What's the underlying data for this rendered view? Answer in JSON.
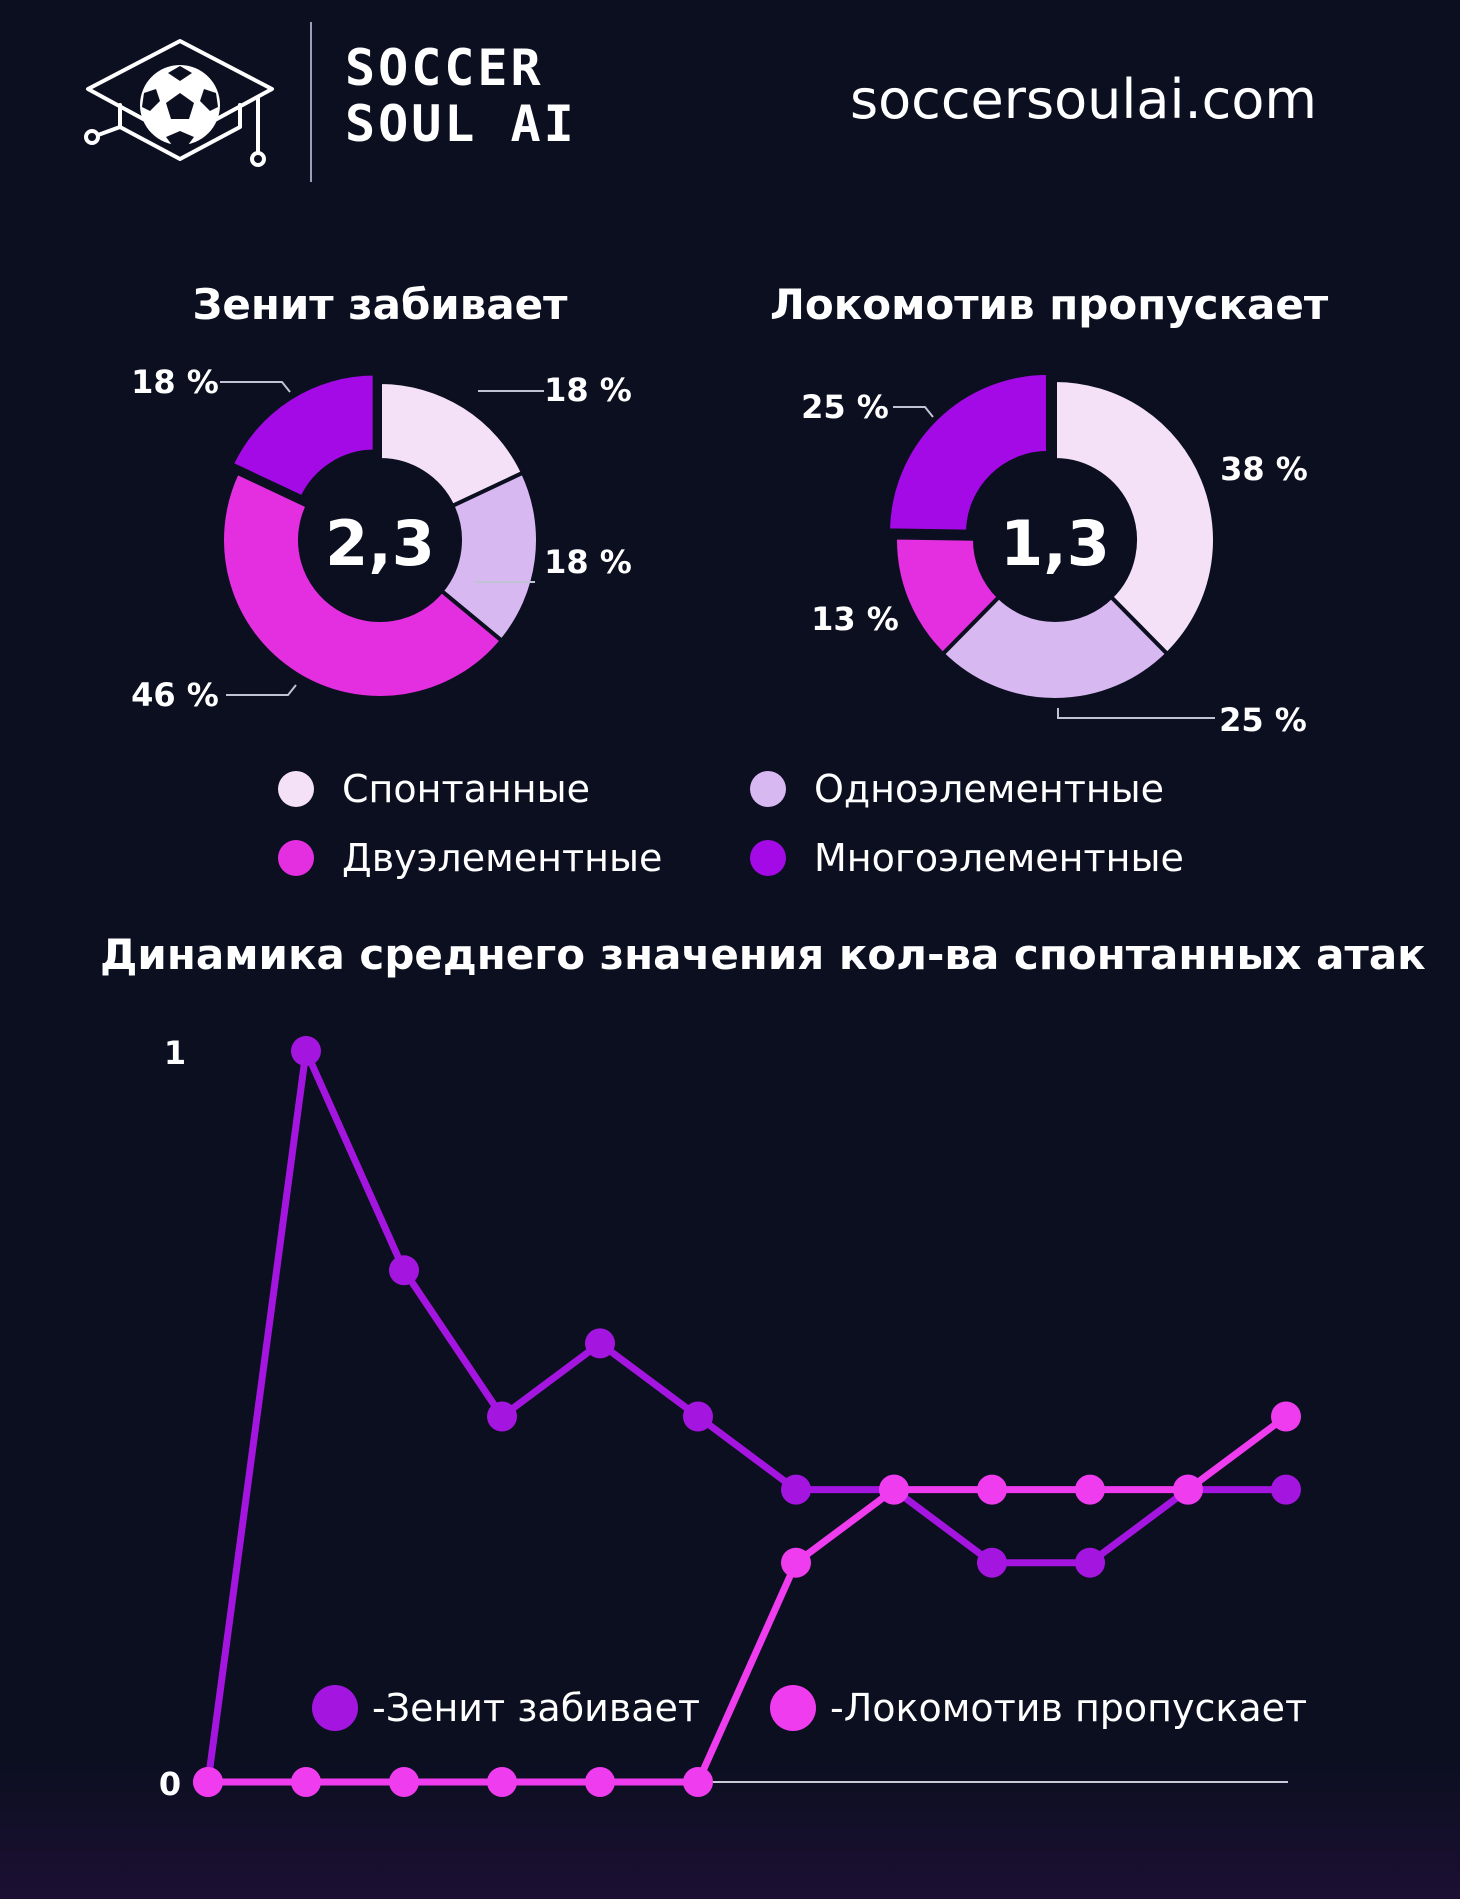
{
  "header": {
    "brand_line1": "SOCCER",
    "brand_line2": "SOUL AI",
    "site_url": "soccersoulai.com"
  },
  "colors": {
    "background": "#0b0f20",
    "spontaneous": "#f4e1f8",
    "one_element": "#d8b8f0",
    "two_element": "#e42fe0",
    "multi_element": "#a30ae6",
    "zenit_line": "#a515e0",
    "lokomotiv_line": "#f03cef"
  },
  "legend": {
    "items": [
      {
        "label": "Спонтанные",
        "color": "#f4e1f8"
      },
      {
        "label": "Одноэлементные",
        "color": "#d8b8f0"
      },
      {
        "label": "Двуэлементные",
        "color": "#e42fe0"
      },
      {
        "label": "Многоэлементные",
        "color": "#a30ae6"
      }
    ]
  },
  "chart_data": [
    {
      "type": "pie",
      "title": "Зенит забивает",
      "center_value": "2,3",
      "slices": [
        {
          "category": "Спонтанные",
          "value": 18,
          "label": "18 %"
        },
        {
          "category": "Одноэлементные",
          "value": 18,
          "label": "18 %"
        },
        {
          "category": "Двуэлементные",
          "value": 46,
          "label": "46 %"
        },
        {
          "category": "Многоэлементные",
          "value": 18,
          "label": "18 %"
        }
      ]
    },
    {
      "type": "pie",
      "title": "Локомотив пропускает",
      "center_value": "1,3",
      "slices": [
        {
          "category": "Спонтанные",
          "value": 38,
          "label": "38 %"
        },
        {
          "category": "Одноэлементные",
          "value": 25,
          "label": "25 %"
        },
        {
          "category": "Двуэлементные",
          "value": 13,
          "label": "13 %"
        },
        {
          "category": "Многоэлементные",
          "value": 25,
          "label": "25 %"
        }
      ]
    },
    {
      "type": "line",
      "title": "Динамика среднего значения кол-ва спонтанных атак",
      "y_ticks": [
        "0",
        "1"
      ],
      "ylim": [
        0,
        1
      ],
      "x": [
        1,
        2,
        3,
        4,
        5,
        6,
        7,
        8,
        9,
        10,
        11,
        12
      ],
      "series": [
        {
          "name": "-Зенит забивает",
          "color": "#a515e0",
          "values": [
            0,
            1,
            0.7,
            0.5,
            0.6,
            0.5,
            0.4,
            0.4,
            0.3,
            0.3,
            0.4,
            0.4
          ]
        },
        {
          "name": "-Локомотив пропускает",
          "color": "#f03cef",
          "values": [
            0,
            0,
            0,
            0,
            0,
            0,
            0.3,
            0.4,
            0.4,
            0.4,
            0.4,
            0.5
          ]
        }
      ]
    }
  ]
}
